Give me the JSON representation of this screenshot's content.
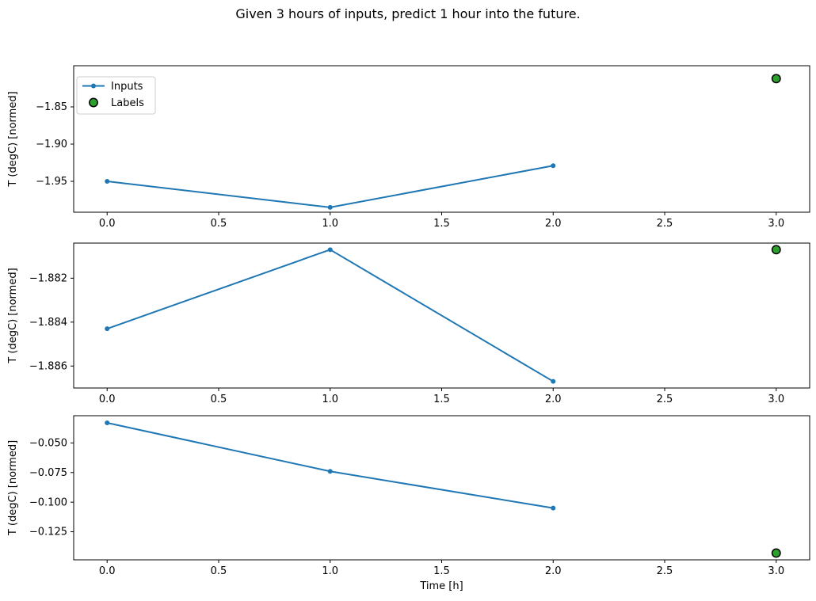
{
  "figure": {
    "title": "Given 3 hours of inputs, predict 1 hour into the future.",
    "background": "#ffffff",
    "text_color": "#000000"
  },
  "colors": {
    "inputs_line": "#1f77b4",
    "labels_fill": "#2ca02c",
    "labels_edge": "#000000",
    "spine": "#000000",
    "legend_border": "#cccccc",
    "legend_background": "#ffffff"
  },
  "legend": {
    "entries": [
      {
        "label": "Inputs",
        "marker": "line-with-dot",
        "color": "#1f77b4"
      },
      {
        "label": "Labels",
        "marker": "filled-circle",
        "color": "#2ca02c",
        "edge": "#000000"
      }
    ],
    "position": "upper-left-of-first-subplot"
  },
  "chart_data": [
    {
      "type": "line",
      "title": "",
      "xlabel": "",
      "ylabel": "T (degC) [normed]",
      "grid": false,
      "show_legend": true,
      "xlim": [
        -0.15,
        3.15
      ],
      "ylim": [
        -1.9915,
        -1.7947
      ],
      "xticks": [
        {
          "v": 0.0,
          "label": "0.0"
        },
        {
          "v": 0.5,
          "label": "0.5"
        },
        {
          "v": 1.0,
          "label": "1.0"
        },
        {
          "v": 1.5,
          "label": "1.5"
        },
        {
          "v": 2.0,
          "label": "2.0"
        },
        {
          "v": 2.5,
          "label": "2.5"
        },
        {
          "v": 3.0,
          "label": "3.0"
        }
      ],
      "yticks": [
        {
          "v": -1.85,
          "label": "−1.85"
        },
        {
          "v": -1.9,
          "label": "−1.90"
        },
        {
          "v": -1.95,
          "label": "−1.95"
        }
      ],
      "series": [
        {
          "name": "Inputs",
          "style": "line+marker",
          "color": "#1f77b4",
          "points": [
            [
              0,
              -1.95
            ],
            [
              1,
              -1.985
            ],
            [
              2,
              -1.929
            ]
          ]
        },
        {
          "name": "Labels",
          "style": "marker",
          "color": "#2ca02c",
          "edge": "#000000",
          "points": [
            [
              3,
              -1.812
            ]
          ]
        }
      ]
    },
    {
      "type": "line",
      "title": "",
      "xlabel": "",
      "ylabel": "T (degC) [normed]",
      "grid": false,
      "show_legend": false,
      "xlim": [
        -0.15,
        3.15
      ],
      "ylim": [
        -1.887,
        -1.8804
      ],
      "xticks": [
        {
          "v": 0.0,
          "label": "0.0"
        },
        {
          "v": 0.5,
          "label": "0.5"
        },
        {
          "v": 1.0,
          "label": "1.0"
        },
        {
          "v": 1.5,
          "label": "1.5"
        },
        {
          "v": 2.0,
          "label": "2.0"
        },
        {
          "v": 2.5,
          "label": "2.5"
        },
        {
          "v": 3.0,
          "label": "3.0"
        }
      ],
      "yticks": [
        {
          "v": -1.882,
          "label": "−1.882"
        },
        {
          "v": -1.884,
          "label": "−1.884"
        },
        {
          "v": -1.886,
          "label": "−1.886"
        }
      ],
      "series": [
        {
          "name": "Inputs",
          "style": "line+marker",
          "color": "#1f77b4",
          "points": [
            [
              0,
              -1.8843
            ],
            [
              1,
              -1.8807
            ],
            [
              2,
              -1.8867
            ]
          ]
        },
        {
          "name": "Labels",
          "style": "marker",
          "color": "#2ca02c",
          "edge": "#000000",
          "points": [
            [
              3,
              -1.8807
            ]
          ]
        }
      ]
    },
    {
      "type": "line",
      "title": "",
      "xlabel": "Time [h]",
      "ylabel": "T (degC) [normed]",
      "grid": false,
      "show_legend": false,
      "xlim": [
        -0.15,
        3.15
      ],
      "ylim": [
        -0.1487,
        -0.027
      ],
      "xticks": [
        {
          "v": 0.0,
          "label": "0.0"
        },
        {
          "v": 0.5,
          "label": "0.5"
        },
        {
          "v": 1.0,
          "label": "1.0"
        },
        {
          "v": 1.5,
          "label": "1.5"
        },
        {
          "v": 2.0,
          "label": "2.0"
        },
        {
          "v": 2.5,
          "label": "2.5"
        },
        {
          "v": 3.0,
          "label": "3.0"
        }
      ],
      "yticks": [
        {
          "v": -0.05,
          "label": "−0.050"
        },
        {
          "v": -0.075,
          "label": "−0.075"
        },
        {
          "v": -0.1,
          "label": "−0.100"
        },
        {
          "v": -0.125,
          "label": "−0.125"
        }
      ],
      "series": [
        {
          "name": "Inputs",
          "style": "line+marker",
          "color": "#1f77b4",
          "points": [
            [
              0,
              -0.033
            ],
            [
              1,
              -0.074
            ],
            [
              2,
              -0.105
            ]
          ]
        },
        {
          "name": "Labels",
          "style": "marker",
          "color": "#2ca02c",
          "edge": "#000000",
          "points": [
            [
              3,
              -0.143
            ]
          ]
        }
      ]
    }
  ]
}
